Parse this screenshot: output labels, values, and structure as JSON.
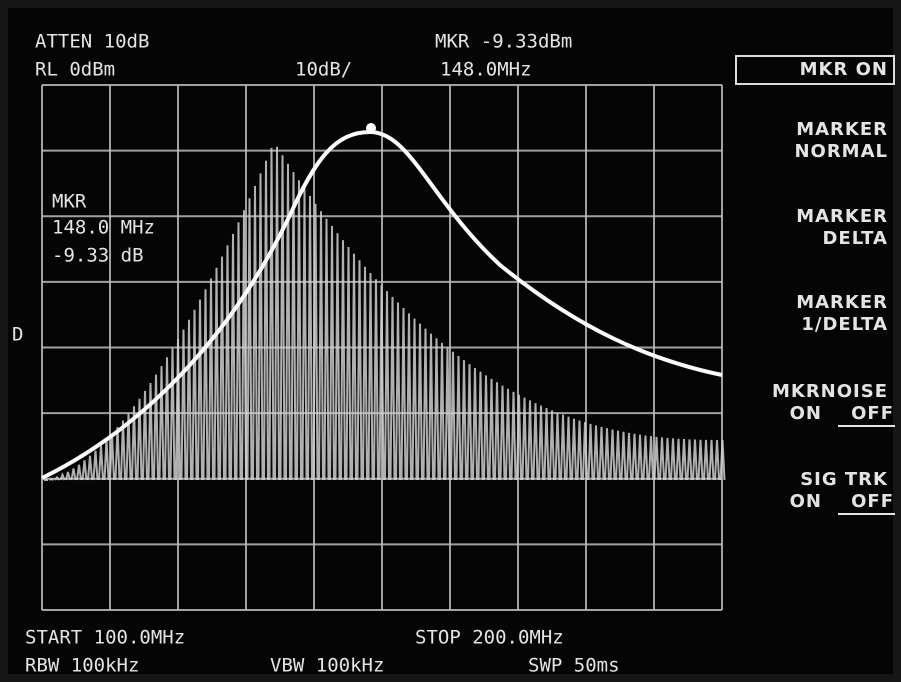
{
  "header": {
    "atten": "ATTEN 10dB",
    "ref_level": "RL 0dBm",
    "scale": "10dB/",
    "marker_level": "MKR -9.33dBm",
    "marker_freq": "148.0MHz"
  },
  "marker_readout": {
    "label": "MKR",
    "freq": "148.0 MHz",
    "level": "-9.33 dB"
  },
  "side_label": "D",
  "softkeys": [
    {
      "lines": [
        "MKR ON"
      ]
    },
    {
      "lines": [
        "MARKER",
        "NORMAL"
      ]
    },
    {
      "lines": [
        "MARKER",
        "DELTA"
      ]
    },
    {
      "lines": [
        "MARKER",
        "1/DELTA"
      ]
    },
    {
      "lines": [
        "MKRNOISE"
      ],
      "on": "ON",
      "off": "OFF"
    },
    {
      "lines": [
        "SIG TRK"
      ],
      "on": "ON",
      "off": "OFF"
    }
  ],
  "footer": {
    "start": "START 100.0MHz",
    "stop": "STOP 200.0MHz",
    "rbw": "RBW 100kHz",
    "vbw": "VBW 100kHz",
    "sweep": "SWP 50ms"
  }
}
